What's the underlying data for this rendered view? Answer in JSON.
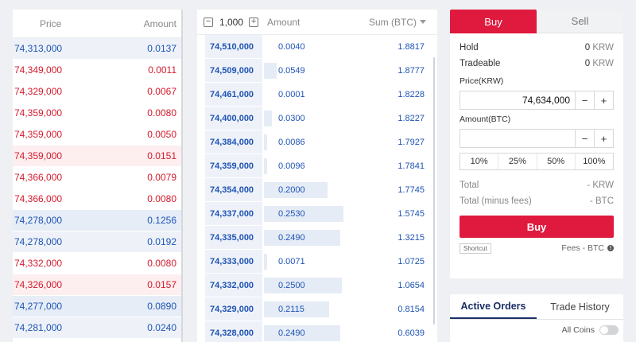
{
  "trades": {
    "header": {
      "price": "Price",
      "amount": "Amount"
    },
    "rows": [
      {
        "price": "74,313,000",
        "amount": "0.0137",
        "side": "buy",
        "hl": "hl-buy"
      },
      {
        "price": "74,349,000",
        "amount": "0.0011",
        "side": "sell",
        "hl": ""
      },
      {
        "price": "74,329,000",
        "amount": "0.0067",
        "side": "sell",
        "hl": ""
      },
      {
        "price": "74,359,000",
        "amount": "0.0080",
        "side": "sell",
        "hl": ""
      },
      {
        "price": "74,359,000",
        "amount": "0.0050",
        "side": "sell",
        "hl": ""
      },
      {
        "price": "74,359,000",
        "amount": "0.0151",
        "side": "sell",
        "hl": "hl-sell"
      },
      {
        "price": "74,366,000",
        "amount": "0.0079",
        "side": "sell",
        "hl": ""
      },
      {
        "price": "74,366,000",
        "amount": "0.0080",
        "side": "sell",
        "hl": ""
      },
      {
        "price": "74,278,000",
        "amount": "0.1256",
        "side": "buy",
        "hl": "hl-buy-strong"
      },
      {
        "price": "74,278,000",
        "amount": "0.0192",
        "side": "buy",
        "hl": "hl-buy"
      },
      {
        "price": "74,332,000",
        "amount": "0.0080",
        "side": "sell",
        "hl": ""
      },
      {
        "price": "74,326,000",
        "amount": "0.0157",
        "side": "sell",
        "hl": "hl-sell"
      },
      {
        "price": "74,277,000",
        "amount": "0.0890",
        "side": "buy",
        "hl": "hl-buy-strong"
      },
      {
        "price": "74,281,000",
        "amount": "0.0240",
        "side": "buy",
        "hl": "hl-buy"
      }
    ]
  },
  "orderbook": {
    "unit": "1,000",
    "minus_icon": "minus-icon",
    "plus_icon": "plus-icon",
    "header": {
      "amount": "Amount",
      "sum": "Sum (BTC)"
    },
    "rows": [
      {
        "price": "74,510,000",
        "amount": "0.0040",
        "sum": "1.8817",
        "depth": 0.0
      },
      {
        "price": "74,509,000",
        "amount": "0.0549",
        "sum": "1.8777",
        "depth": 0.08
      },
      {
        "price": "74,461,000",
        "amount": "0.0001",
        "sum": "1.8228",
        "depth": 0.0
      },
      {
        "price": "74,400,000",
        "amount": "0.0300",
        "sum": "1.8227",
        "depth": 0.05
      },
      {
        "price": "74,384,000",
        "amount": "0.0086",
        "sum": "1.7927",
        "depth": 0.02
      },
      {
        "price": "74,359,000",
        "amount": "0.0096",
        "sum": "1.7841",
        "depth": 0.02
      },
      {
        "price": "74,354,000",
        "amount": "0.2000",
        "sum": "1.7745",
        "depth": 0.4
      },
      {
        "price": "74,337,000",
        "amount": "0.2530",
        "sum": "1.5745",
        "depth": 0.5
      },
      {
        "price": "74,335,000",
        "amount": "0.2490",
        "sum": "1.3215",
        "depth": 0.48
      },
      {
        "price": "74,333,000",
        "amount": "0.0071",
        "sum": "1.0725",
        "depth": 0.02
      },
      {
        "price": "74,332,000",
        "amount": "0.2500",
        "sum": "1.0654",
        "depth": 0.49
      },
      {
        "price": "74,329,000",
        "amount": "0.2115",
        "sum": "0.8154",
        "depth": 0.41
      },
      {
        "price": "74,328,000",
        "amount": "0.2490",
        "sum": "0.6039",
        "depth": 0.48
      }
    ]
  },
  "form": {
    "tabs": {
      "buy": "Buy",
      "sell": "Sell"
    },
    "hold": {
      "label": "Hold",
      "value": "0",
      "unit": "KRW"
    },
    "tradeable": {
      "label": "Tradeable",
      "value": "0",
      "unit": "KRW"
    },
    "price": {
      "label": "Price(KRW)",
      "value": "74,634,000"
    },
    "amount": {
      "label": "Amount(BTC)",
      "value": ""
    },
    "percent": [
      "10%",
      "25%",
      "50%",
      "100%"
    ],
    "total": {
      "label": "Total",
      "value": "- KRW"
    },
    "total_fees": {
      "label": "Total (minus fees)",
      "value": "- BTC"
    },
    "buy_button": "Buy",
    "shortcut": "Shortcut",
    "fees": "Fees - BTC",
    "colors": {
      "buy": "#e01a3e",
      "ask_text": "#1e53b5",
      "bid_text": "#d41b2d"
    }
  },
  "orders": {
    "tabs": {
      "active": "Active Orders",
      "history": "Trade History"
    },
    "all_coins": "All Coins"
  }
}
